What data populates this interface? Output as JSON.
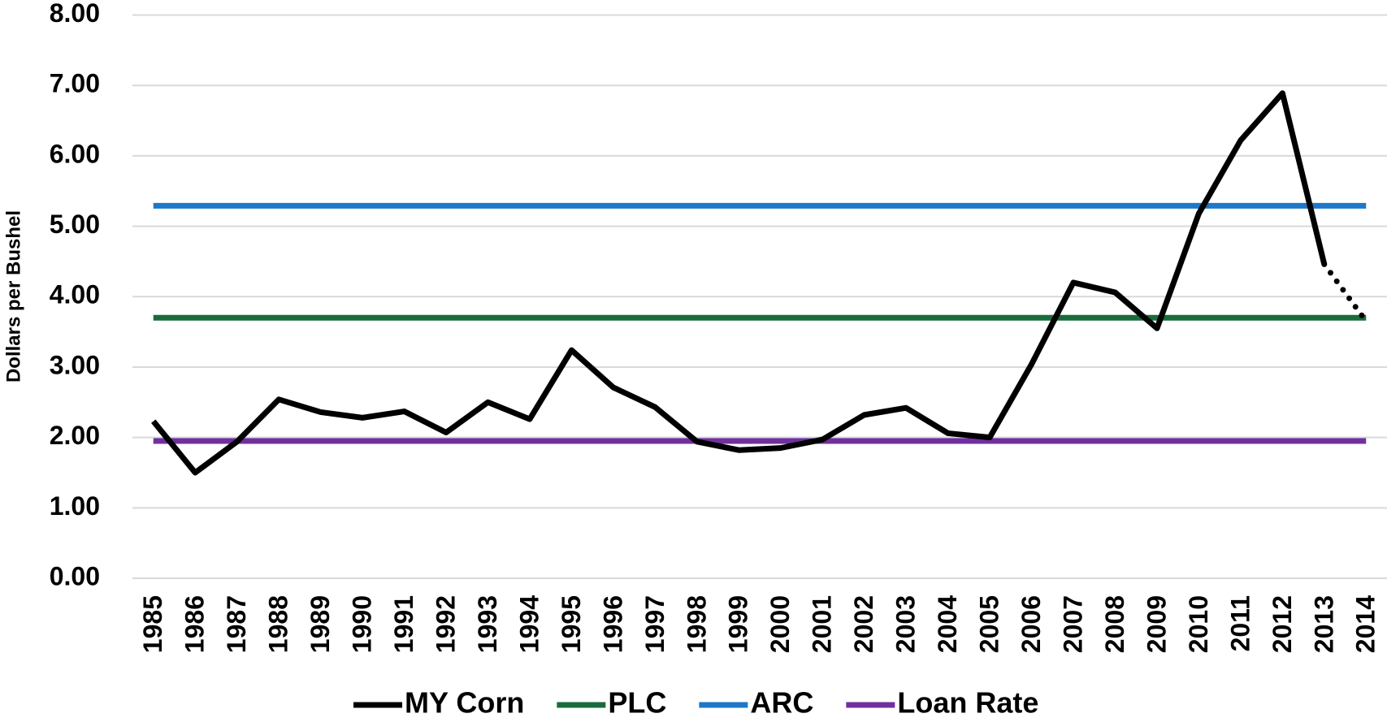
{
  "chart_data": {
    "type": "line",
    "y_label": "Dollars per Bushel",
    "categories": [
      "1985",
      "1986",
      "1987",
      "1988",
      "1989",
      "1990",
      "1991",
      "1992",
      "1993",
      "1994",
      "1995",
      "1996",
      "1997",
      "1998",
      "1999",
      "2000",
      "2001",
      "2002",
      "2003",
      "2004",
      "2005",
      "2006",
      "2007",
      "2008",
      "2009",
      "2010",
      "2011",
      "2012",
      "2013",
      "2014"
    ],
    "series": [
      {
        "name": "MY Corn",
        "color": "#000000",
        "dotted_last_segment": true,
        "values": [
          2.23,
          1.5,
          1.94,
          2.54,
          2.36,
          2.28,
          2.37,
          2.07,
          2.5,
          2.26,
          3.24,
          2.71,
          2.43,
          1.94,
          1.82,
          1.85,
          1.97,
          2.32,
          2.42,
          2.06,
          2.0,
          3.04,
          4.2,
          4.06,
          3.55,
          5.18,
          6.22,
          6.89,
          4.46,
          3.65
        ]
      },
      {
        "name": "PLC",
        "color": "#1a6b3c",
        "values": [
          3.7,
          3.7,
          3.7,
          3.7,
          3.7,
          3.7,
          3.7,
          3.7,
          3.7,
          3.7,
          3.7,
          3.7,
          3.7,
          3.7,
          3.7,
          3.7,
          3.7,
          3.7,
          3.7,
          3.7,
          3.7,
          3.7,
          3.7,
          3.7,
          3.7,
          3.7,
          3.7,
          3.7,
          3.7,
          3.7
        ]
      },
      {
        "name": "ARC",
        "color": "#1f77c8",
        "values": [
          5.29,
          5.29,
          5.29,
          5.29,
          5.29,
          5.29,
          5.29,
          5.29,
          5.29,
          5.29,
          5.29,
          5.29,
          5.29,
          5.29,
          5.29,
          5.29,
          5.29,
          5.29,
          5.29,
          5.29,
          5.29,
          5.29,
          5.29,
          5.29,
          5.29,
          5.29,
          5.29,
          5.29,
          5.29,
          5.29
        ]
      },
      {
        "name": "Loan Rate",
        "color": "#7030a0",
        "values": [
          1.95,
          1.95,
          1.95,
          1.95,
          1.95,
          1.95,
          1.95,
          1.95,
          1.95,
          1.95,
          1.95,
          1.95,
          1.95,
          1.95,
          1.95,
          1.95,
          1.95,
          1.95,
          1.95,
          1.95,
          1.95,
          1.95,
          1.95,
          1.95,
          1.95,
          1.95,
          1.95,
          1.95,
          1.95,
          1.95
        ]
      }
    ],
    "ylim": [
      0,
      8
    ],
    "yticks": [
      {
        "value": 0,
        "label": "0.00"
      },
      {
        "value": 1,
        "label": "1.00"
      },
      {
        "value": 2,
        "label": "2.00"
      },
      {
        "value": 3,
        "label": "3.00"
      },
      {
        "value": 4,
        "label": "4.00"
      },
      {
        "value": 5,
        "label": "5.00"
      },
      {
        "value": 6,
        "label": "6.00"
      },
      {
        "value": 7,
        "label": "7.00"
      },
      {
        "value": 8,
        "label": "8.00"
      }
    ],
    "grid": true,
    "legend": "bottom"
  }
}
